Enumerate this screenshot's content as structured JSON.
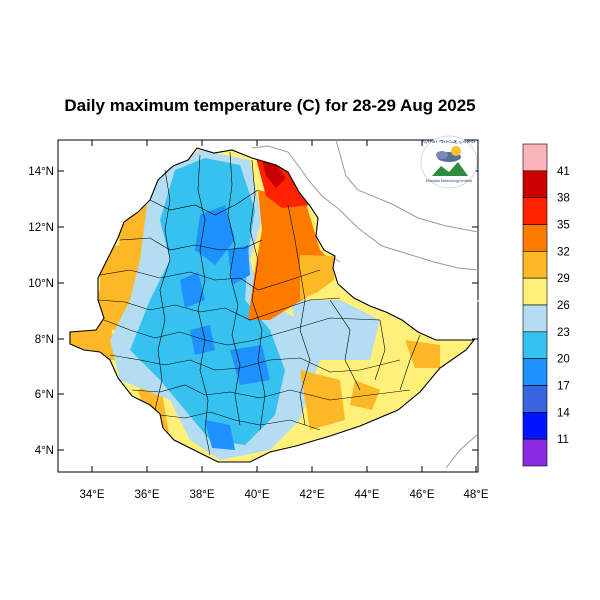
{
  "title": "Daily maximum temperature (C) for 28-29 Aug 2025",
  "axes": {
    "x_ticks": [
      "34°E",
      "36°E",
      "38°E",
      "40°E",
      "42°E",
      "44°E",
      "46°E",
      "48°E"
    ],
    "y_ticks": [
      "14°N",
      "12°N",
      "10°N",
      "8°N",
      "6°N",
      "4°N"
    ]
  },
  "colorbar": {
    "labels": [
      "41",
      "38",
      "35",
      "32",
      "29",
      "26",
      "23",
      "20",
      "17",
      "14",
      "11"
    ],
    "colors": [
      "#fbb4b9",
      "#cc0000",
      "#ff2200",
      "#ff7b00",
      "#fdb827",
      "#fff07a",
      "#b4dcf2",
      "#37c1ef",
      "#1e90ff",
      "#3a65e0",
      "#0014ff",
      "#8a2be2"
    ]
  },
  "logo": {
    "lines": [
      "የኢትዮጵያ ሜትዮሮሎጂ ኢንስቲትዩት",
      "Ethiopian Meteorology Institute"
    ]
  },
  "map_colors": {
    "country_base": "#fff07a",
    "blue_light": "#b4dcf2",
    "blue_mid": "#37c1ef",
    "blue_dark": "#1e90ff",
    "orange_light": "#fdb827",
    "orange": "#ff7b00",
    "red": "#ff2200",
    "darkred": "#cc0000"
  }
}
